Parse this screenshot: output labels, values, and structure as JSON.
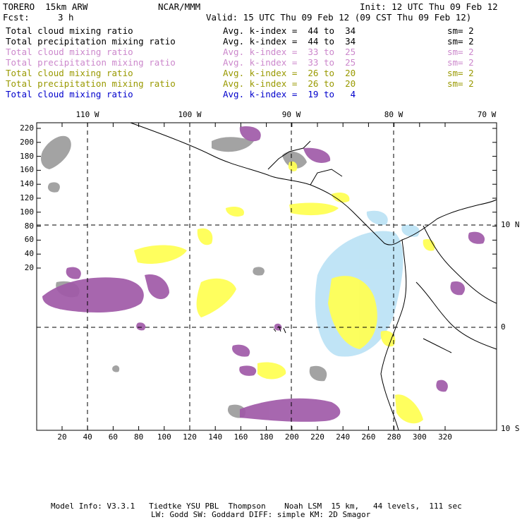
{
  "header": {
    "model": "TORERO  15km ARW",
    "org": "NCAR/MMM",
    "init": "Init: 12 UTC Thu 09 Feb 12",
    "fcst_label": "Fcst:",
    "fcst_value": "3 h",
    "valid": "Valid: 15 UTC Thu 09 Feb 12 (09 CST Thu 09 Feb 12)"
  },
  "legend": [
    {
      "field": "Total cloud mixing ratio",
      "index": "Avg. k-index =  44 to  34",
      "sm": "sm= 2",
      "color": "#000000"
    },
    {
      "field": "Total precipitation mixing ratio",
      "index": "Avg. k-index =  44 to  34",
      "sm": "sm= 2",
      "color": "#000000"
    },
    {
      "field": "Total cloud mixing ratio",
      "index": "Avg. k-index =  33 to  25",
      "sm": "sm= 2",
      "color": "#cc88cc"
    },
    {
      "field": "Total precipitation mixing ratio",
      "index": "Avg. k-index =  33 to  25",
      "sm": "sm= 2",
      "color": "#cc88cc"
    },
    {
      "field": "Total cloud mixing ratio",
      "index": "Avg. k-index =  26 to  20",
      "sm": "sm= 2",
      "color": "#999900"
    },
    {
      "field": "Total precipitation mixing ratio",
      "index": "Avg. k-index =  26 to  20",
      "sm": "sm= 2",
      "color": "#999900"
    },
    {
      "field": "Total cloud mixing ratio",
      "index": "Avg. k-index =  19 to   4",
      "sm": "",
      "color": "#0000cc"
    }
  ],
  "map": {
    "top_lon_labels": [
      "110 W",
      "100 W",
      "90 W",
      "80 W",
      "70 W"
    ],
    "right_lat_labels": [
      "10 N",
      "0",
      "10 S"
    ],
    "y_ticks": [
      "220",
      "200",
      "180",
      "160",
      "140",
      "120",
      "100",
      "80",
      "60",
      "40",
      "20"
    ],
    "x_ticks": [
      "20",
      "40",
      "60",
      "80",
      "100",
      "120",
      "140",
      "160",
      "180",
      "200",
      "220",
      "240",
      "260",
      "280",
      "300",
      "320"
    ],
    "colors": {
      "grey_cloud": "#999999",
      "purple": "#a05aa8",
      "yellow": "#ffff55",
      "light_blue": "#bde3f5"
    }
  },
  "footer": {
    "line1": "Model Info: V3.3.1   Tiedtke YSU PBL  Thompson    Noah LSM  15 km,   44 levels,  111 sec",
    "line2": "LW: Godd SW: Goddard DIFF: simple KM: 2D Smagor"
  }
}
